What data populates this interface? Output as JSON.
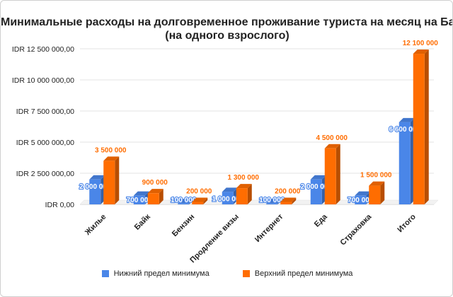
{
  "chart_data": {
    "type": "bar",
    "title_lines": [
      "Минимальные расходы на долговременное проживание туриста на месяц на Бали",
      "(на одного взрослого)"
    ],
    "categories": [
      "Жилье",
      "Байк",
      "Бензин",
      "Продление визы",
      "Интернет",
      "Еда",
      "Страховка",
      "Итого"
    ],
    "series": [
      {
        "name": "Нижний предел минимума",
        "color": "#4a86e8",
        "values": [
          2000000,
          700000,
          100000,
          1000000,
          100000,
          2000000,
          700000,
          6600000
        ],
        "labels": [
          "2 000 000",
          "700 000",
          "100 000",
          "1 000 000",
          "100 000",
          "2 000 000",
          "700 000",
          "6 600 000"
        ]
      },
      {
        "name": "Верхний предел минимума",
        "color": "#ff6d01",
        "values": [
          3500000,
          900000,
          200000,
          1300000,
          200000,
          4500000,
          1500000,
          12100000
        ],
        "labels": [
          "3 500 000",
          "900 000",
          "200 000",
          "1 300 000",
          "200 000",
          "4 500 000",
          "1 500 000",
          "12 100 000"
        ]
      }
    ],
    "y_ticks": [
      0,
      2500000,
      5000000,
      7500000,
      10000000,
      12500000
    ],
    "y_tick_labels": [
      "IDR 0,00",
      "IDR 2 500 000,00",
      "IDR 5 000 000,00",
      "IDR 7 500 000,00",
      "IDR 10 000 000,00",
      "IDR 12 500 000,00"
    ],
    "ylim": [
      0,
      12500000
    ],
    "grid": true,
    "legend_position": "bottom",
    "style": "3d"
  }
}
